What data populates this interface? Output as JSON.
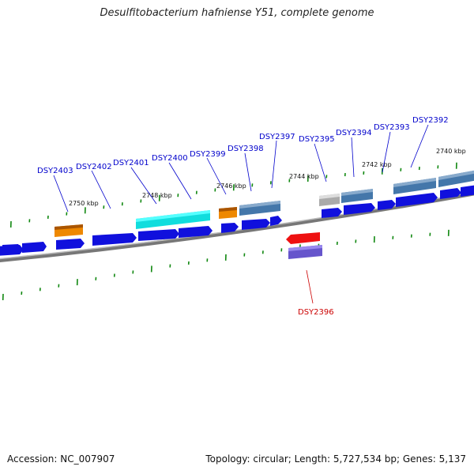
{
  "title": "Desulfitobacterium hafniense Y51, complete genome",
  "footer": {
    "accession": "Accession: NC_007907",
    "summary": "Topology: circular; Length: 5,727,534 bp; Genes: 5,137"
  },
  "colors": {
    "gene_blue": "#1010dd",
    "gene_red": "#ee1111",
    "gene_purple": "#6655cc",
    "feature_orange": "#ee8800",
    "feature_cyan": "#11dddd",
    "feature_steel": "#4477aa",
    "feature_gray": "#aaaaaa",
    "tick_green": "#118811",
    "label_blue": "#0000cc",
    "label_red": "#cc0000",
    "backbone": "#777777"
  },
  "kbp_ticks": [
    "2750 kbp",
    "2748 kbp",
    "2746 kbp",
    "2744 kbp",
    "2742 kbp",
    "2740 kbp"
  ],
  "genes": [
    {
      "label": "DSY2403",
      "strand": "top"
    },
    {
      "label": "DSY2402",
      "strand": "top"
    },
    {
      "label": "DSY2401",
      "strand": "top"
    },
    {
      "label": "DSY2400",
      "strand": "top"
    },
    {
      "label": "DSY2399",
      "strand": "top"
    },
    {
      "label": "DSY2398",
      "strand": "top"
    },
    {
      "label": "DSY2397",
      "strand": "top"
    },
    {
      "label": "DSY2395",
      "strand": "top"
    },
    {
      "label": "DSY2394",
      "strand": "top"
    },
    {
      "label": "DSY2393",
      "strand": "top"
    },
    {
      "label": "DSY2392",
      "strand": "top"
    },
    {
      "label": "DSY2396",
      "strand": "bottom"
    }
  ]
}
